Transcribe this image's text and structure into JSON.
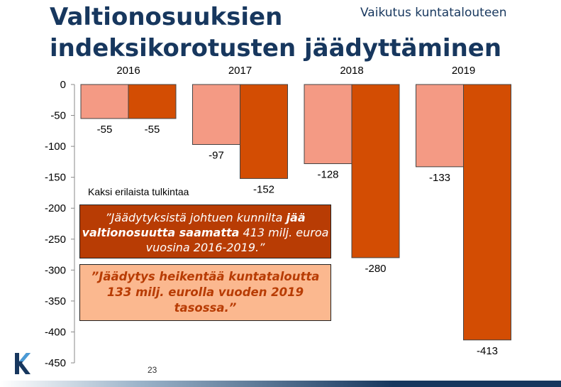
{
  "title_line1": "Valtionosuuksien",
  "title_line2": "indeksikorotusten jäädyttäminen",
  "subtitle": "Vaikutus kuntatalouteen",
  "box_label": "Kaksi erilaista tulkintaa",
  "box1": {
    "text_before": "”Jäädytyksistä johtuen kunnilta ",
    "text_bold": "jää valtionosuutta saamatta",
    "text_after": " 413 milj. euroa vuosina 2016-2019.”"
  },
  "box2": {
    "text": "”Jäädytys heikentää kuntataloutta 133 milj. eurolla vuoden 2019 tasossa.”"
  },
  "page_number": "23",
  "colors": {
    "title": "#17375e",
    "series_light": "#f49a84",
    "series_dark": "#d34d03",
    "box1_bg": "#b83c04",
    "box2_bg": "#fbb88f"
  },
  "chart_data": {
    "type": "bar",
    "categories": [
      "2016",
      "2017",
      "2018",
      "2019"
    ],
    "series": [
      {
        "values": [
          -55,
          -97,
          -128,
          -133
        ]
      },
      {
        "values": [
          -55,
          -152,
          -280,
          -413
        ]
      }
    ],
    "ylim": [
      -450,
      0
    ],
    "yticks": [
      0,
      -50,
      -100,
      -150,
      -200,
      -250,
      -300,
      -350,
      -400,
      -450
    ],
    "category_labels_position": "top",
    "grid": false,
    "legend": "none"
  }
}
